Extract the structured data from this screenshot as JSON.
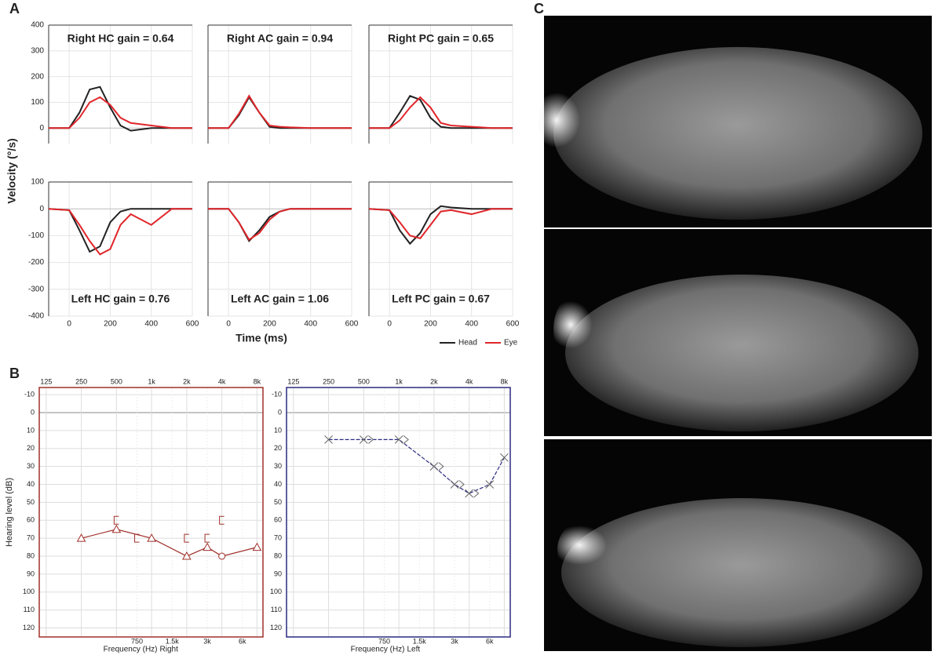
{
  "panel_labels": [
    "A",
    "B",
    "C"
  ],
  "chart_data": [
    {
      "type": "line",
      "ylabel": "Velocity (°/s)",
      "xlabel": "Time (ms)",
      "legend": [
        {
          "name": "Head",
          "color": "#222222"
        },
        {
          "name": "Eye",
          "color": "#e0262b"
        }
      ],
      "x": [
        -100,
        0,
        50,
        100,
        150,
        200,
        250,
        300,
        400,
        500,
        600
      ],
      "xlim": [
        -100,
        600
      ],
      "xticks": [
        0,
        200,
        400,
        600
      ],
      "grid": true,
      "panels": [
        {
          "title": "Right HC gain = 0.64",
          "ylim": [
            -60,
            400
          ],
          "yticks": [
            0,
            100,
            200,
            300,
            400
          ],
          "series": [
            {
              "values": [
                0,
                0,
                60,
                150,
                160,
                80,
                10,
                -10,
                0,
                0,
                0
              ]
            },
            {
              "values": [
                0,
                0,
                40,
                100,
                120,
                90,
                40,
                20,
                10,
                0,
                0
              ]
            }
          ]
        },
        {
          "title": "Right AC gain = 0.94",
          "ylim": [
            -60,
            400
          ],
          "yticks": [
            0,
            100,
            200,
            300,
            400
          ],
          "series": [
            {
              "values": [
                0,
                0,
                50,
                120,
                60,
                5,
                0,
                0,
                0,
                0,
                0
              ]
            },
            {
              "values": [
                0,
                0,
                55,
                125,
                60,
                10,
                5,
                3,
                0,
                0,
                0
              ]
            }
          ]
        },
        {
          "title": "Right PC gain = 0.65",
          "ylim": [
            -60,
            400
          ],
          "yticks": [
            0,
            100,
            200,
            300,
            400
          ],
          "series": [
            {
              "values": [
                0,
                0,
                60,
                125,
                110,
                40,
                5,
                0,
                0,
                0,
                0
              ]
            },
            {
              "values": [
                0,
                0,
                30,
                80,
                120,
                80,
                20,
                10,
                5,
                0,
                0
              ]
            }
          ]
        },
        {
          "title": "Left HC gain = 0.76",
          "ylim": [
            -400,
            100
          ],
          "yticks": [
            -400,
            -300,
            -200,
            -100,
            0,
            100
          ],
          "series": [
            {
              "values": [
                0,
                -5,
                -80,
                -160,
                -140,
                -50,
                -10,
                0,
                0,
                0,
                0
              ]
            },
            {
              "values": [
                0,
                -5,
                -60,
                -120,
                -170,
                -150,
                -60,
                -20,
                -60,
                0,
                0
              ]
            }
          ]
        },
        {
          "title": "Left AC gain = 1.06",
          "ylim": [
            -400,
            100
          ],
          "yticks": [
            -400,
            -300,
            -200,
            -100,
            0,
            100
          ],
          "series": [
            {
              "values": [
                0,
                0,
                -50,
                -120,
                -80,
                -30,
                -10,
                0,
                0,
                0,
                0
              ]
            },
            {
              "values": [
                0,
                0,
                -50,
                -115,
                -90,
                -40,
                -10,
                0,
                0,
                0,
                0
              ]
            }
          ]
        },
        {
          "title": "Left PC gain = 0.67",
          "ylim": [
            -400,
            100
          ],
          "yticks": [
            -400,
            -300,
            -200,
            -100,
            0,
            100
          ],
          "series": [
            {
              "values": [
                0,
                -5,
                -80,
                -130,
                -90,
                -20,
                10,
                5,
                0,
                0,
                0
              ]
            },
            {
              "values": [
                0,
                -5,
                -50,
                -100,
                -110,
                -60,
                -10,
                -5,
                -20,
                0,
                0
              ]
            }
          ]
        }
      ]
    },
    {
      "type": "audiogram",
      "ylabel": "Hearing level (dB)",
      "xlabel": "Frequency (Hz)",
      "side": "Right",
      "color": "#a0302a",
      "log_x": true,
      "xlim": [
        109,
        9000
      ],
      "ylim": [
        -14,
        125
      ],
      "xticks": [
        125,
        250,
        500,
        {
          "value": 1000,
          "label": "1k"
        },
        {
          "value": 2000,
          "label": "2k"
        },
        {
          "value": 4000,
          "label": "4k"
        },
        {
          "value": 8000,
          "label": "8k"
        }
      ],
      "x2ticks": [
        750,
        {
          "value": 1500,
          "label": "1.5k"
        },
        {
          "value": 3000,
          "label": "3k"
        },
        {
          "value": 6000,
          "label": "6k"
        }
      ],
      "yticks": [
        -10,
        0,
        10,
        20,
        30,
        40,
        50,
        60,
        70,
        80,
        90,
        100,
        110,
        120
      ],
      "series": [
        {
          "x": [
            250,
            500,
            1000,
            2000,
            3000,
            4000,
            8000
          ],
          "values": [
            70,
            65,
            70,
            80,
            75,
            80,
            75
          ],
          "line": true,
          "markers": [
            "triangle",
            "triangle",
            "triangle",
            "triangle",
            "triangle",
            "circle",
            "triangle"
          ]
        },
        {
          "x": [
            500,
            750,
            2000,
            3000,
            4000
          ],
          "values": [
            60,
            70,
            70,
            70,
            60
          ],
          "line": false,
          "markers": [
            "bracket",
            "bracket",
            "bracket",
            "bracket",
            "bracket"
          ]
        }
      ]
    },
    {
      "type": "audiogram",
      "xlabel": "Frequency (Hz)",
      "side": "Left",
      "color": "#2a2a80",
      "log_x": true,
      "xlim": [
        109,
        9000
      ],
      "ylim": [
        -14,
        125
      ],
      "xticks": [
        125,
        250,
        500,
        {
          "value": 1000,
          "label": "1k"
        },
        {
          "value": 2000,
          "label": "2k"
        },
        {
          "value": 4000,
          "label": "4k"
        },
        {
          "value": 8000,
          "label": "8k"
        }
      ],
      "x2ticks": [
        750,
        {
          "value": 1500,
          "label": "1.5k"
        },
        {
          "value": 3000,
          "label": "3k"
        },
        {
          "value": 6000,
          "label": "6k"
        }
      ],
      "yticks": [
        -10,
        0,
        10,
        20,
        30,
        40,
        50,
        60,
        70,
        80,
        90,
        100,
        110,
        120
      ],
      "series": [
        {
          "x": [
            250,
            500,
            1000,
            2000,
            3000,
            4000,
            6000,
            8000
          ],
          "values": [
            15,
            15,
            15,
            30,
            40,
            45,
            40,
            25
          ],
          "line": true,
          "markers": [
            "x",
            "x",
            "x",
            "x",
            "x",
            "x",
            "x",
            "x"
          ]
        },
        {
          "x": [
            500,
            1000,
            2000,
            3000,
            4000
          ],
          "values": [
            15,
            15,
            30,
            40,
            45
          ],
          "line": false,
          "markers": [
            "angle",
            "angle",
            "angle",
            "angle",
            "angle"
          ]
        }
      ]
    }
  ]
}
